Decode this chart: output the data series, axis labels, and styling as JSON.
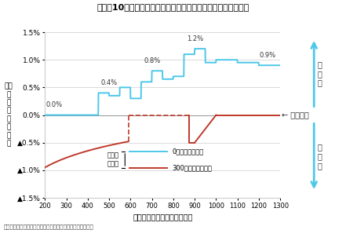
{
  "title": "（図表10）配偶者控除廃止＋夠婦控除創設による影響（割合）",
  "xlabel": "主たる生計者の年収（万円）",
  "ylabel_chars": [
    "世",
    "帯",
    "の",
    "負",
    "担",
    "増",
    "加",
    "割",
    "合"
  ],
  "footnote": "（注）世帯の負担増額の割合＝世帯の負担増額／世帯の年収",
  "xlim": [
    200,
    1300
  ],
  "ylim": [
    -0.015,
    0.015
  ],
  "yticks": [
    -0.015,
    -0.01,
    -0.005,
    0.0,
    0.005,
    0.01,
    0.015
  ],
  "ytick_labels": [
    "▲1.5%",
    "▲1.0%",
    "▲0.5%",
    "0.0%",
    "0.5%",
    "1.0%",
    "1.5%"
  ],
  "xticks": [
    200,
    300,
    400,
    500,
    600,
    700,
    800,
    900,
    1000,
    1100,
    1200,
    1300
  ],
  "blue_label": "0万円（片働き）",
  "red_label": "300万円（共働き）",
  "legend_label": "配偶者\nの年収",
  "no_impact_label": "← 影響なし",
  "up_label": "負\n担\n増",
  "down_label": "負\n担\n減",
  "blue_color": "#4DC8E8",
  "red_color": "#C0392B",
  "bg_color": "#FFFFFF",
  "grid_color": "#CCCCCC"
}
